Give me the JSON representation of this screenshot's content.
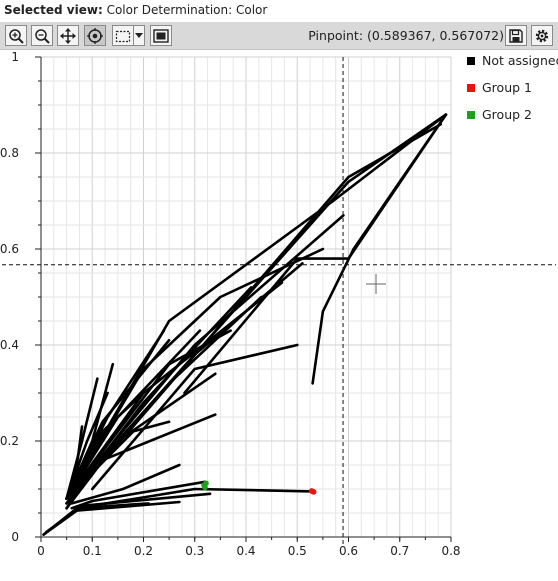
{
  "header": {
    "label": "Selected view:",
    "value": "Color Determination: Color"
  },
  "toolbar": {
    "buttons": [
      "zoom-in-icon",
      "zoom-out-icon",
      "pan-icon",
      "pinpoint-icon",
      "rect-select-icon",
      "dropdown-icon",
      "fit-icon"
    ],
    "pinpoint_text": "Pinpoint: (0.589367, 0.567072)",
    "right_buttons": [
      "save-icon",
      "settings-icon"
    ]
  },
  "legend": [
    {
      "label": "Not assigned",
      "color": "#000000"
    },
    {
      "label": "Group 1",
      "color": "#e8140f"
    },
    {
      "label": "Group 2",
      "color": "#1ea01e"
    }
  ],
  "chart_data": {
    "type": "scatter",
    "xlim": [
      0,
      0.8
    ],
    "ylim": [
      0,
      1
    ],
    "x_ticks": [
      "0",
      "0.1",
      "0.2",
      "0.3",
      "0.4",
      "0.5",
      "0.6",
      "0.7",
      "0.8"
    ],
    "y_ticks": [
      "0",
      "0.2",
      "0.4",
      "0.6",
      "0.8",
      "1"
    ],
    "grid": true,
    "crosshair": {
      "x": 0.589367,
      "y": 0.567072
    },
    "series": [
      {
        "name": "Not assigned",
        "color": "#000000",
        "strands": [
          [
            [
              0.005,
              0.005
            ],
            [
              0.07,
              0.06
            ],
            [
              0.21,
              0.07
            ]
          ],
          [
            [
              0.005,
              0.005
            ],
            [
              0.07,
              0.055
            ],
            [
              0.27,
              0.073
            ]
          ],
          [
            [
              0.01,
              0.01
            ],
            [
              0.08,
              0.065
            ],
            [
              0.33,
              0.09
            ]
          ],
          [
            [
              0.06,
              0.06
            ],
            [
              0.1,
              0.075
            ],
            [
              0.32,
              0.115
            ]
          ],
          [
            [
              0.07,
              0.06
            ],
            [
              0.3,
              0.1
            ],
            [
              0.53,
              0.095
            ]
          ],
          [
            [
              0.06,
              0.07
            ],
            [
              0.16,
              0.1
            ],
            [
              0.27,
              0.15
            ]
          ],
          [
            [
              0.05,
              0.06
            ],
            [
              0.12,
              0.16
            ],
            [
              0.34,
              0.255
            ]
          ],
          [
            [
              0.05,
              0.06
            ],
            [
              0.15,
              0.2
            ],
            [
              0.34,
              0.34
            ]
          ],
          [
            [
              0.05,
              0.07
            ],
            [
              0.2,
              0.28
            ],
            [
              0.41,
              0.52
            ]
          ],
          [
            [
              0.05,
              0.07
            ],
            [
              0.25,
              0.32
            ],
            [
              0.43,
              0.5
            ]
          ],
          [
            [
              0.05,
              0.08
            ],
            [
              0.3,
              0.38
            ],
            [
              0.51,
              0.57
            ]
          ],
          [
            [
              0.05,
              0.08
            ],
            [
              0.2,
              0.3
            ],
            [
              0.47,
              0.53
            ]
          ],
          [
            [
              0.05,
              0.08
            ],
            [
              0.3,
              0.4
            ],
            [
              0.59,
              0.67
            ]
          ],
          [
            [
              0.05,
              0.08
            ],
            [
              0.25,
              0.36
            ],
            [
              0.37,
              0.43
            ]
          ],
          [
            [
              0.05,
              0.08
            ],
            [
              0.15,
              0.25
            ],
            [
              0.31,
              0.43
            ]
          ],
          [
            [
              0.05,
              0.08
            ],
            [
              0.12,
              0.24
            ],
            [
              0.25,
              0.41
            ]
          ],
          [
            [
              0.05,
              0.08
            ],
            [
              0.13,
              0.25
            ],
            [
              0.24,
              0.43
            ]
          ],
          [
            [
              0.05,
              0.08
            ],
            [
              0.1,
              0.2
            ],
            [
              0.14,
              0.36
            ]
          ],
          [
            [
              0.05,
              0.08
            ],
            [
              0.08,
              0.2
            ],
            [
              0.11,
              0.33
            ]
          ],
          [
            [
              0.05,
              0.08
            ],
            [
              0.07,
              0.15
            ],
            [
              0.08,
              0.23
            ]
          ],
          [
            [
              0.05,
              0.08
            ],
            [
              0.09,
              0.2
            ],
            [
              0.13,
              0.3
            ]
          ],
          [
            [
              0.05,
              0.08
            ],
            [
              0.12,
              0.22
            ],
            [
              0.2,
              0.3
            ]
          ],
          [
            [
              0.05,
              0.08
            ],
            [
              0.18,
              0.22
            ],
            [
              0.25,
              0.24
            ]
          ],
          [
            [
              0.05,
              0.08
            ],
            [
              0.6,
              0.74
            ],
            [
              0.79,
              0.88
            ]
          ],
          [
            [
              0.05,
              0.08
            ],
            [
              0.25,
              0.45
            ],
            [
              0.57,
              0.7
            ],
            [
              0.79,
              0.88
            ]
          ],
          [
            [
              0.53,
              0.32
            ],
            [
              0.55,
              0.47
            ],
            [
              0.61,
              0.6
            ],
            [
              0.79,
              0.88
            ]
          ],
          [
            [
              0.28,
              0.3
            ],
            [
              0.5,
              0.58
            ],
            [
              0.6,
              0.58
            ],
            [
              0.79,
              0.88
            ]
          ],
          [
            [
              0.05,
              0.07
            ],
            [
              0.6,
              0.75
            ],
            [
              0.78,
              0.86
            ]
          ],
          [
            [
              0.1,
              0.1
            ],
            [
              0.3,
              0.35
            ],
            [
              0.5,
              0.4
            ]
          ],
          [
            [
              0.05,
              0.08
            ],
            [
              0.2,
              0.35
            ],
            [
              0.35,
              0.5
            ],
            [
              0.55,
              0.6
            ]
          ]
        ]
      },
      {
        "name": "Group 1",
        "color": "#e8140f",
        "points": [
          [
            0.53,
            0.095
          ],
          [
            0.532,
            0.094
          ],
          [
            0.528,
            0.096
          ]
        ]
      },
      {
        "name": "Group 2",
        "color": "#1ea01e",
        "points": [
          [
            0.318,
            0.108
          ],
          [
            0.322,
            0.112
          ],
          [
            0.32,
            0.103
          ]
        ]
      }
    ]
  }
}
